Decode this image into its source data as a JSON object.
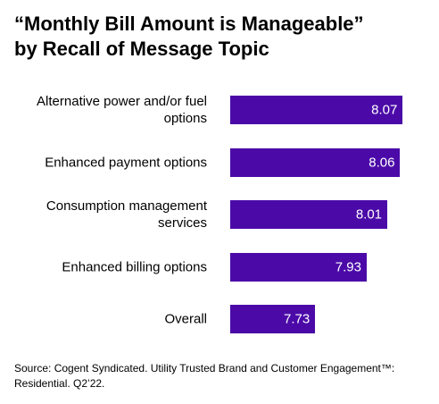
{
  "chart_data": {
    "type": "bar",
    "orientation": "horizontal",
    "title_lines": [
      "“Monthly Bill Amount is Manageable”",
      "by Recall of Message Topic"
    ],
    "categories": [
      "Alternative power and/or fuel options",
      "Enhanced payment options",
      "Consumption management services",
      "Enhanced billing options",
      "Overall"
    ],
    "values": [
      8.07,
      8.06,
      8.01,
      7.93,
      7.73
    ],
    "color": "#4b0aa8",
    "xlim": [
      7.4,
      8.1
    ],
    "source": "Source: Cogent Syndicated. Utility Trusted Brand and Customer Engagement™: Residential. Q2’22."
  }
}
